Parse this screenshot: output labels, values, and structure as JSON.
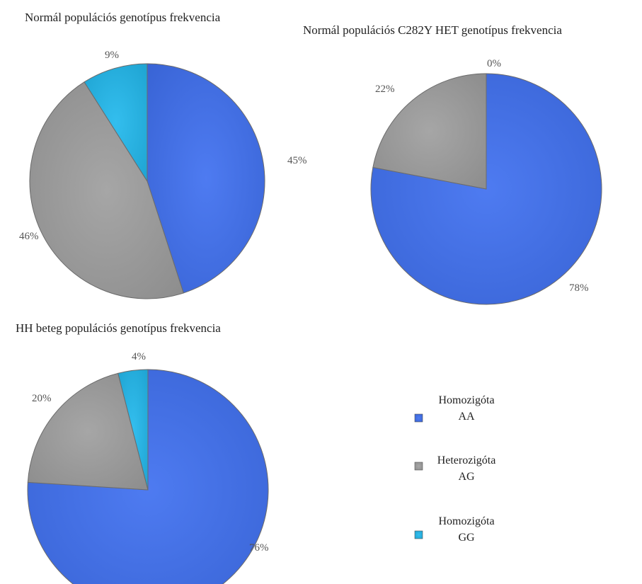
{
  "legend": {
    "entries": [
      {
        "line1": "Homozigóta",
        "line2": "AA",
        "color": "#3f6ff0"
      },
      {
        "line1": "Heterozigóta",
        "line2": "AG",
        "color": "#9e9e9e"
      },
      {
        "line1": "Homozigóta",
        "line2": "GG",
        "color": "#21b8ec"
      }
    ]
  },
  "chart_data": [
    {
      "type": "pie",
      "title": "Normál populációs genotípus frekvencia",
      "labels": [
        "Homozigóta AA",
        "Heterozigóta AG",
        "Homozigóta GG"
      ],
      "values": [
        45,
        46,
        9
      ],
      "value_labels": [
        "45%",
        "46%",
        "9%"
      ],
      "colors": [
        "#3f6ff0",
        "#9e9e9e",
        "#21b8ec"
      ]
    },
    {
      "type": "pie",
      "title": "Normál populációs C282Y HET  genotípus frekvencia",
      "labels": [
        "Homozigóta AA",
        "Heterozigóta AG",
        "Homozigóta GG"
      ],
      "values": [
        78,
        22,
        0
      ],
      "value_labels": [
        "78%",
        "22%",
        "0%"
      ],
      "colors": [
        "#3f6ff0",
        "#9e9e9e",
        "#21b8ec"
      ]
    },
    {
      "type": "pie",
      "title": "HH  beteg populációs genotípus frekvencia",
      "labels": [
        "Homozigóta AA",
        "Heterozigóta AG",
        "Homozigóta GG"
      ],
      "values": [
        76,
        20,
        4
      ],
      "value_labels": [
        "76%",
        "20%",
        "4%"
      ],
      "colors": [
        "#3f6ff0",
        "#9e9e9e",
        "#21b8ec"
      ]
    }
  ]
}
